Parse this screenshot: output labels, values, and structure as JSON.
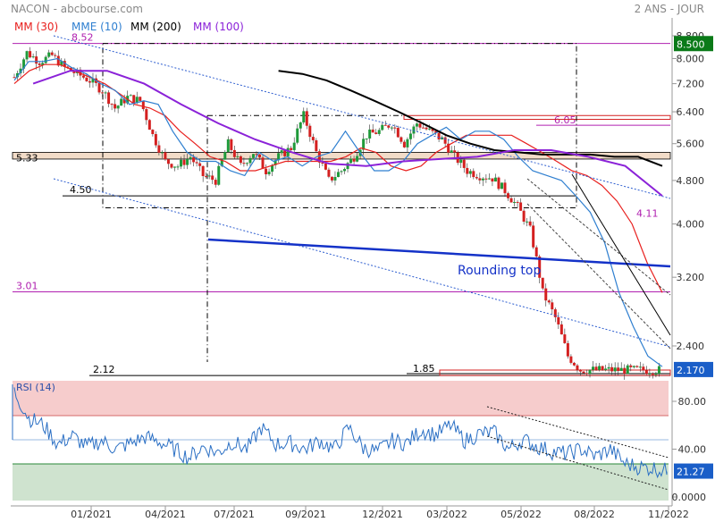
{
  "header": {
    "title": "NACON - abcbourse.com",
    "period": "2 ANS - JOUR",
    "legend": [
      {
        "label": "MM (30)",
        "color": "#e8201e"
      },
      {
        "label": "MME (10)",
        "color": "#2f7fd0"
      },
      {
        "label": "MM (200)",
        "color": "#000000"
      },
      {
        "label": "MM (100)",
        "color": "#8b22d8"
      }
    ]
  },
  "colors": {
    "candle_up": "#1f9a3a",
    "candle_down": "#d42020",
    "ma30": "#e8201e",
    "mme10": "#2f7fd0",
    "ma200": "#000000",
    "ma100": "#8b22d8",
    "magenta_level": "#b020b0",
    "support_line": "#1432c8",
    "rsi_line": "#2a6fc4",
    "rsi_overbought_zone": "#f6cccc",
    "rsi_oversold_zone": "#cfe3cf",
    "price_tag_green": "#0a7a18",
    "price_tag_blue": "#1a5ec8"
  },
  "chart_data": [
    {
      "type": "candlestick",
      "title": "NACON",
      "y_scale": "log",
      "ylim": [
        2.0,
        9.2
      ],
      "y_ticks": [
        8.8,
        8.0,
        7.2,
        6.4,
        5.6,
        4.8,
        4.0,
        3.2,
        2.4
      ],
      "y_tick_labels": [
        "8.800",
        "8.000",
        "7.200",
        "6.400",
        "5.600",
        "4.800",
        "4.000",
        "3.200",
        "2.400"
      ],
      "x_ticks": [
        "01/2021",
        "04/2021",
        "07/2021",
        "09/2021",
        "12/2021",
        "03/2022",
        "05/2022",
        "08/2022",
        "11/2022"
      ],
      "close_series": {
        "name": "NACON",
        "t": [
          0,
          2,
          4,
          6,
          8,
          10,
          12,
          14,
          16,
          18,
          20,
          22,
          24,
          26,
          28,
          30,
          32,
          34,
          36,
          38,
          40,
          42,
          44,
          46,
          48,
          50,
          52,
          54,
          56,
          58,
          60,
          62,
          64,
          66,
          68,
          70,
          72,
          74,
          76,
          78,
          80,
          82,
          84,
          86,
          88,
          90,
          92,
          94,
          96,
          98,
          100,
          102,
          104
        ],
        "values": [
          7.4,
          8.2,
          7.9,
          8.1,
          7.7,
          7.5,
          7.3,
          7.0,
          6.5,
          6.8,
          6.7,
          5.8,
          5.2,
          5.1,
          5.3,
          4.9,
          4.8,
          5.6,
          5.1,
          5.4,
          5.0,
          5.3,
          5.5,
          6.3,
          5.4,
          4.8,
          5.0,
          5.3,
          5.8,
          5.9,
          6.1,
          5.6,
          6.1,
          5.9,
          5.7,
          5.3,
          5.0,
          4.9,
          4.85,
          4.6,
          4.3,
          3.9,
          3.0,
          2.7,
          2.3,
          2.17,
          2.17,
          2.17,
          2.17,
          2.17,
          2.17,
          2.17,
          2.17
        ]
      },
      "indicators": [
        {
          "name": "MM (30)",
          "values": [
            7.2,
            7.6,
            7.8,
            7.8,
            7.6,
            7.4,
            7.2,
            6.9,
            6.6,
            6.5,
            6.3,
            5.9,
            5.6,
            5.3,
            5.2,
            5.0,
            5.0,
            5.1,
            5.2,
            5.2,
            5.2,
            5.2,
            5.3,
            5.5,
            5.4,
            5.1,
            5.0,
            5.1,
            5.4,
            5.6,
            5.8,
            5.8,
            5.8,
            5.8,
            5.6,
            5.4,
            5.2,
            5.0,
            4.9,
            4.7,
            4.4,
            4.0,
            3.4,
            3.0
          ]
        },
        {
          "name": "MME (10)",
          "values": [
            7.3,
            7.9,
            7.9,
            8.0,
            7.7,
            7.5,
            7.2,
            7.0,
            6.6,
            6.7,
            6.6,
            5.9,
            5.4,
            5.2,
            5.2,
            5.0,
            4.9,
            5.4,
            5.2,
            5.3,
            5.1,
            5.3,
            5.4,
            5.9,
            5.4,
            5.0,
            5.0,
            5.2,
            5.6,
            5.8,
            6.0,
            5.7,
            5.9,
            5.9,
            5.7,
            5.3,
            5.0,
            4.9,
            4.8,
            4.5,
            4.2,
            3.7,
            3.0,
            2.6,
            2.3,
            2.2
          ]
        },
        {
          "name": "MM (200)",
          "values": [
            7.6,
            7.5,
            7.3,
            7.0,
            6.7,
            6.4,
            6.1,
            5.8,
            5.6,
            5.45,
            5.4,
            5.35,
            5.35,
            5.35,
            5.3,
            5.3,
            5.1
          ]
        },
        {
          "name": "MM (100)",
          "values": [
            7.2,
            7.6,
            7.6,
            7.2,
            6.6,
            6.1,
            5.7,
            5.4,
            5.15,
            5.1,
            5.2,
            5.25,
            5.3,
            5.45,
            5.45,
            5.3,
            5.1,
            4.5
          ]
        }
      ],
      "levels": [
        {
          "label": "8.52",
          "value": 8.52
        },
        {
          "label": "6.05",
          "value": 6.05
        },
        {
          "label": "5.33",
          "value": 5.33
        },
        {
          "label": "4.50",
          "value": 4.5
        },
        {
          "label": "4.11",
          "value": 4.11
        },
        {
          "label": "3.01",
          "value": 3.01
        },
        {
          "label": "2.12",
          "value": 2.12
        },
        {
          "label": "1.85",
          "value": 1.85
        }
      ],
      "annotations": [
        {
          "text": "Rounding top"
        }
      ],
      "last_price_tags": [
        {
          "label": "8.500",
          "value": 8.5
        },
        {
          "label": "2.170",
          "value": 2.17
        }
      ]
    },
    {
      "type": "line",
      "title": "RSI (14)",
      "ylim": [
        0,
        100
      ],
      "y_ticks": [
        80,
        40,
        0
      ],
      "y_tick_labels": [
        "80.00",
        "40.00",
        "0.0000"
      ],
      "overbought": 70,
      "oversold": 30,
      "series": [
        {
          "name": "RSI (14)",
          "t": [
            0,
            2,
            4,
            6,
            8,
            10,
            12,
            14,
            16,
            18,
            20,
            22,
            24,
            26,
            28,
            30,
            32,
            34,
            36,
            38,
            40,
            42,
            44,
            46,
            48,
            50,
            52,
            54,
            56,
            58,
            60,
            62,
            64,
            66,
            68,
            70,
            72,
            74,
            76,
            78,
            80,
            82,
            84,
            86,
            88,
            90
          ],
          "values": [
            88,
            66,
            60,
            44,
            51,
            42,
            47,
            40,
            45,
            50,
            46,
            40,
            33,
            42,
            37,
            46,
            40,
            58,
            44,
            45,
            40,
            47,
            40,
            58,
            41,
            38,
            47,
            45,
            56,
            52,
            60,
            47,
            53,
            54,
            40,
            48,
            42,
            38,
            36,
            40,
            34,
            40,
            28,
            25,
            24,
            21.27
          ]
        }
      ],
      "last_value_tag": "21.27"
    }
  ]
}
